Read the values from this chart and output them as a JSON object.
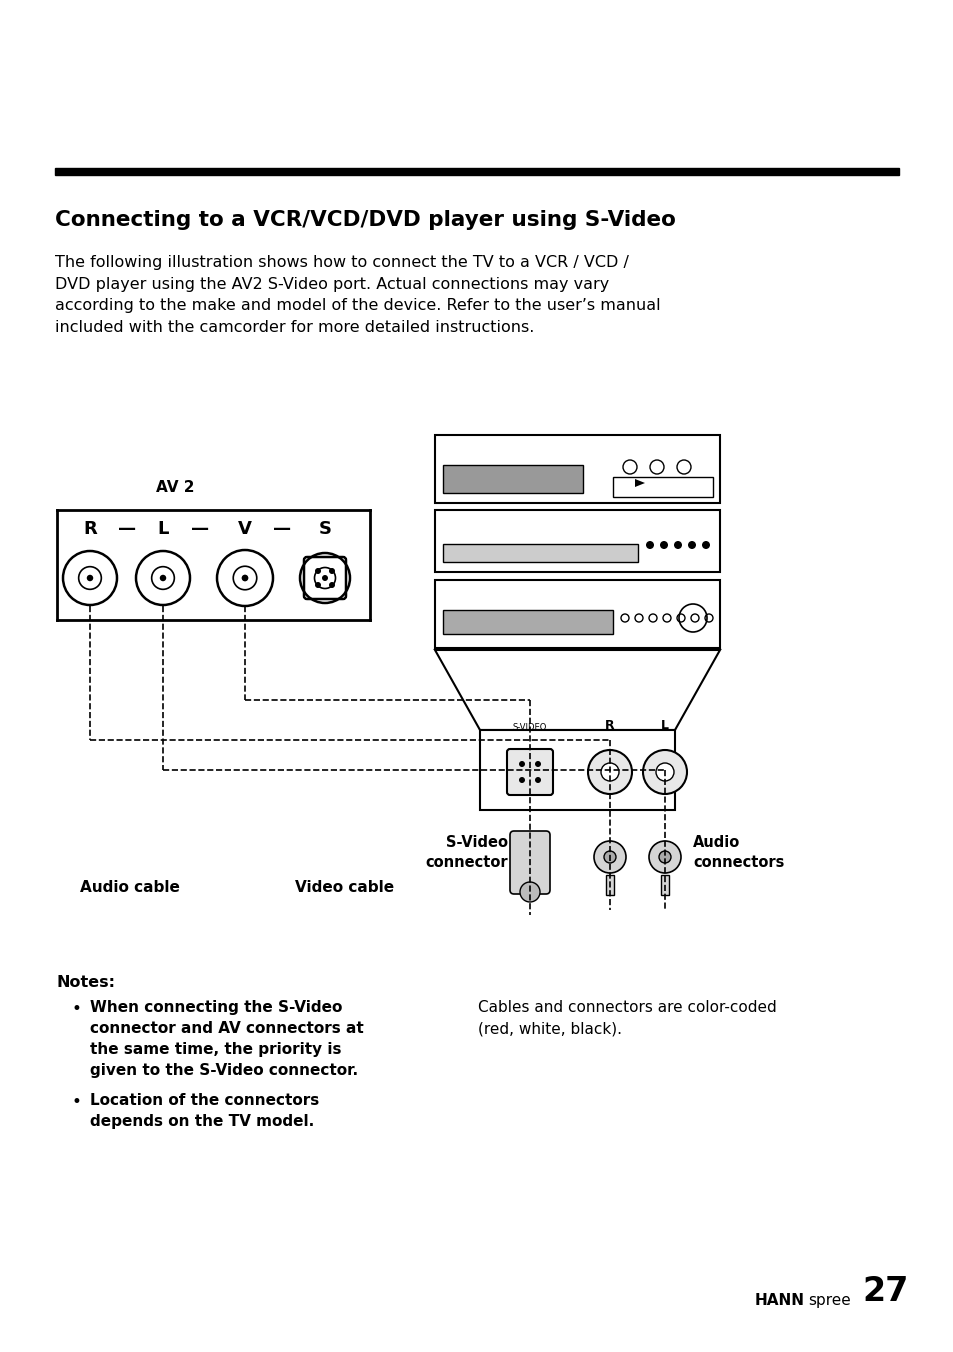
{
  "page_bg": "#ffffff",
  "title": "Connecting to a VCR/VCD/DVD player using S-Video",
  "body_text": "The following illustration shows how to connect the TV to a VCR / VCD /\nDVD player using the AV2 S-Video port. Actual connections may vary\naccording to the make and model of the device. Refer to the user’s manual\nincluded with the camcorder for more detailed instructions.",
  "notes_header": "Notes:",
  "note1_bold": "When connecting the S-Video\nconnector and AV connectors at\nthe same time, the priority is\ngiven to the S-Video connector.",
  "note2_bold": "Location of the connectors\ndepends on the TV model.",
  "note_right": "Cables and connectors are color-coded\n(red, white, black).",
  "footer_hann": "HANN",
  "footer_spree": "spree",
  "footer_num": "27",
  "label_av2": "AV 2",
  "label_r": "R",
  "label_l": "L",
  "label_v": "V",
  "label_s": "S",
  "label_svideo_conn": "S-Video\nconnector",
  "label_video_cable": "Video cable",
  "label_audio_cable": "Audio cable",
  "label_audio_conn": "Audio\nconnectors",
  "label_svideo_port": "S-VIDEO",
  "label_r2": "R",
  "label_l2": "L"
}
